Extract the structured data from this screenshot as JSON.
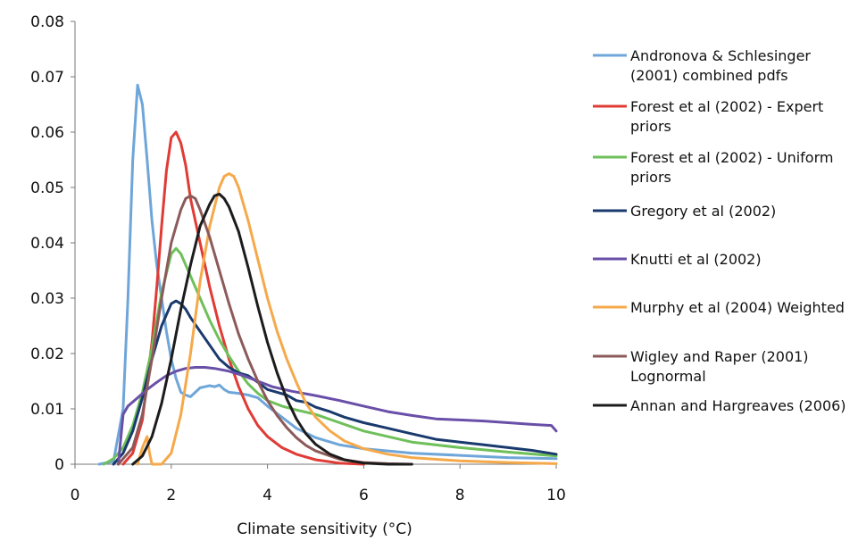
{
  "chart_data": {
    "type": "line",
    "title": "",
    "xlabel": "Climate sensitivity (°C)",
    "ylabel": "",
    "xlim": [
      0,
      10
    ],
    "ylim": [
      0,
      0.08
    ],
    "xticks": [
      "0",
      "2",
      "4",
      "6",
      "8",
      "10"
    ],
    "yticks": [
      "0",
      "0.01",
      "0.02",
      "0.03",
      "0.04",
      "0.05",
      "0.06",
      "0.07",
      "0.08"
    ],
    "grid": false,
    "legend_position": "right",
    "series": [
      {
        "name": "Andronova & Schlesinger (2001) combined pdfs",
        "legend_lines": [
          "Andronova & Schlesinger",
          "(2001) combined pdfs"
        ],
        "color": "#6fa6d9",
        "x": [
          0.5,
          0.8,
          1.0,
          1.1,
          1.2,
          1.3,
          1.4,
          1.5,
          1.6,
          1.7,
          1.8,
          1.9,
          2.0,
          2.1,
          2.2,
          2.3,
          2.4,
          2.5,
          2.6,
          2.7,
          2.8,
          2.9,
          3.0,
          3.1,
          3.2,
          3.4,
          3.6,
          3.8,
          4.0,
          4.3,
          4.6,
          5.0,
          5.5,
          6.0,
          7.0,
          8.0,
          9.0,
          10.0
        ],
        "y": [
          0,
          0.0005,
          0.01,
          0.03,
          0.055,
          0.0685,
          0.065,
          0.055,
          0.044,
          0.036,
          0.03,
          0.024,
          0.019,
          0.0155,
          0.013,
          0.0125,
          0.0122,
          0.013,
          0.0138,
          0.014,
          0.0142,
          0.014,
          0.0143,
          0.0135,
          0.013,
          0.0128,
          0.0125,
          0.012,
          0.0105,
          0.0085,
          0.0065,
          0.0048,
          0.0035,
          0.0028,
          0.002,
          0.0016,
          0.0012,
          0.001
        ]
      },
      {
        "name": "Forest et al (2002) - Expert priors",
        "legend_lines": [
          "Forest et al (2002) - Expert",
          "priors"
        ],
        "color": "#e03b35",
        "x": [
          1.0,
          1.2,
          1.4,
          1.6,
          1.7,
          1.8,
          1.9,
          2.0,
          2.1,
          2.2,
          2.3,
          2.4,
          2.6,
          2.8,
          3.0,
          3.2,
          3.4,
          3.6,
          3.8,
          4.0,
          4.3,
          4.6,
          5.0,
          5.5,
          6.0
        ],
        "y": [
          0,
          0.002,
          0.008,
          0.022,
          0.032,
          0.043,
          0.053,
          0.059,
          0.06,
          0.058,
          0.054,
          0.048,
          0.04,
          0.032,
          0.025,
          0.019,
          0.014,
          0.01,
          0.007,
          0.005,
          0.003,
          0.0018,
          0.0008,
          0.0002,
          0
        ]
      },
      {
        "name": "Forest et al (2002) - Uniform priors",
        "legend_lines": [
          "Forest et al (2002) - Uniform",
          "priors"
        ],
        "color": "#6ec05a",
        "x": [
          0.6,
          0.8,
          1.0,
          1.2,
          1.4,
          1.6,
          1.8,
          2.0,
          2.1,
          2.2,
          2.3,
          2.4,
          2.6,
          2.8,
          3.0,
          3.2,
          3.4,
          3.6,
          3.8,
          4.0,
          4.3,
          4.6,
          5.0,
          5.5,
          6.0,
          7.0,
          8.0,
          9.0,
          10.0
        ],
        "y": [
          0,
          0.001,
          0.003,
          0.007,
          0.013,
          0.021,
          0.031,
          0.038,
          0.039,
          0.038,
          0.036,
          0.034,
          0.03,
          0.026,
          0.0225,
          0.0195,
          0.0168,
          0.0145,
          0.0128,
          0.0115,
          0.0105,
          0.0098,
          0.009,
          0.0075,
          0.006,
          0.004,
          0.003,
          0.0022,
          0.0015
        ]
      },
      {
        "name": "Gregory et al (2002)",
        "legend_lines": [
          "Gregory et al (2002)"
        ],
        "color": "#1a3a6e",
        "x": [
          0.8,
          1.0,
          1.2,
          1.4,
          1.6,
          1.8,
          2.0,
          2.1,
          2.2,
          2.3,
          2.4,
          2.6,
          2.8,
          3.0,
          3.2,
          3.4,
          3.6,
          3.8,
          4.0,
          4.2,
          4.4,
          4.6,
          4.8,
          5.0,
          5.3,
          5.6,
          6.0,
          6.5,
          7.0,
          7.5,
          8.0,
          8.5,
          9.0,
          9.5,
          10.0
        ],
        "y": [
          0,
          0.002,
          0.006,
          0.012,
          0.019,
          0.025,
          0.029,
          0.0295,
          0.029,
          0.028,
          0.0265,
          0.024,
          0.0215,
          0.019,
          0.0175,
          0.0165,
          0.016,
          0.0148,
          0.0135,
          0.013,
          0.0125,
          0.0115,
          0.0112,
          0.0103,
          0.0095,
          0.0085,
          0.0075,
          0.0065,
          0.0055,
          0.0045,
          0.004,
          0.0035,
          0.003,
          0.0025,
          0.0018
        ]
      },
      {
        "name": "Knutti et al (2002)",
        "legend_lines": [
          "Knutti et al (2002)"
        ],
        "color": "#6a4fa8",
        "x": [
          0.9,
          1.0,
          1.1,
          1.3,
          1.5,
          1.7,
          1.9,
          2.1,
          2.3,
          2.5,
          2.7,
          2.9,
          3.2,
          3.5,
          3.8,
          4.1,
          4.5,
          5.0,
          5.5,
          6.0,
          6.5,
          7.0,
          7.5,
          8.0,
          8.5,
          9.0,
          9.5,
          9.9,
          10.0
        ],
        "y": [
          0,
          0.009,
          0.0105,
          0.012,
          0.0135,
          0.0148,
          0.016,
          0.0168,
          0.0173,
          0.0175,
          0.0175,
          0.0173,
          0.0168,
          0.016,
          0.015,
          0.014,
          0.0132,
          0.0124,
          0.0115,
          0.0105,
          0.0095,
          0.0088,
          0.0082,
          0.008,
          0.0078,
          0.0075,
          0.0072,
          0.007,
          0.006
        ]
      },
      {
        "name": "Murphy et al (2004) Weighted",
        "legend_lines": [
          "Murphy et al (2004) Weighted"
        ],
        "color": "#f5a94a",
        "x": [
          1.3,
          1.4,
          1.5,
          1.55,
          1.6,
          1.65,
          1.8,
          2.0,
          2.2,
          2.4,
          2.6,
          2.8,
          3.0,
          3.1,
          3.2,
          3.3,
          3.4,
          3.6,
          3.8,
          4.0,
          4.2,
          4.4,
          4.6,
          4.8,
          5.0,
          5.3,
          5.6,
          6.0,
          6.5,
          7.0,
          8.0,
          9.0,
          10.0
        ],
        "y": [
          0,
          0.003,
          0.005,
          0.002,
          0,
          0,
          0,
          0.002,
          0.009,
          0.02,
          0.033,
          0.043,
          0.05,
          0.052,
          0.0525,
          0.052,
          0.05,
          0.044,
          0.037,
          0.03,
          0.024,
          0.019,
          0.0148,
          0.011,
          0.0085,
          0.006,
          0.0042,
          0.0028,
          0.0018,
          0.0012,
          0.0006,
          0.0003,
          0.0001
        ]
      },
      {
        "name": "Wigley and Raper (2001) Lognormal",
        "legend_lines": [
          "Wigley and Raper (2001)",
          "Lognormal"
        ],
        "color": "#8c5a5a",
        "x": [
          0.9,
          1.2,
          1.4,
          1.6,
          1.8,
          2.0,
          2.2,
          2.3,
          2.4,
          2.5,
          2.6,
          2.8,
          3.0,
          3.2,
          3.4,
          3.6,
          3.8,
          4.0,
          4.2,
          4.4,
          4.6,
          4.8,
          5.0,
          5.5,
          6.0,
          6.5,
          7.0
        ],
        "y": [
          0,
          0.003,
          0.009,
          0.019,
          0.03,
          0.04,
          0.046,
          0.048,
          0.0485,
          0.048,
          0.046,
          0.041,
          0.035,
          0.029,
          0.0235,
          0.019,
          0.015,
          0.0115,
          0.0088,
          0.0066,
          0.0048,
          0.0034,
          0.0024,
          0.0009,
          0.0003,
          0.0001,
          0
        ]
      },
      {
        "name": "Annan and Hargreaves (2006)",
        "legend_lines": [
          "Annan and Hargreaves (2006)"
        ],
        "color": "#1c1c1c",
        "x": [
          1.2,
          1.4,
          1.6,
          1.8,
          2.0,
          2.2,
          2.4,
          2.6,
          2.8,
          2.9,
          3.0,
          3.1,
          3.2,
          3.4,
          3.6,
          3.8,
          4.0,
          4.2,
          4.4,
          4.6,
          4.8,
          5.0,
          5.3,
          5.6,
          6.0,
          6.5,
          7.0
        ],
        "y": [
          0,
          0.0015,
          0.005,
          0.011,
          0.019,
          0.028,
          0.036,
          0.043,
          0.047,
          0.0485,
          0.0488,
          0.048,
          0.0465,
          0.042,
          0.0355,
          0.0285,
          0.022,
          0.0165,
          0.0118,
          0.0082,
          0.0055,
          0.0036,
          0.0018,
          0.0008,
          0.0002,
          0,
          0
        ]
      }
    ]
  }
}
